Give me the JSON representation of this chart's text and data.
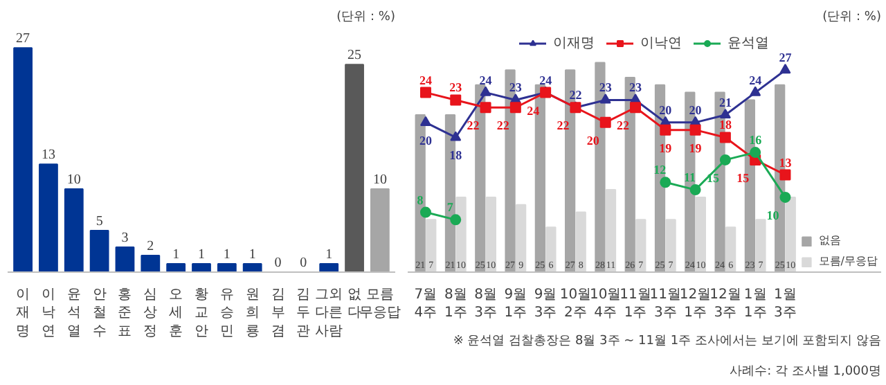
{
  "chart_data": [
    {
      "type": "bar",
      "annotations": [
        "(단위 : %)"
      ],
      "categories": [
        "이재명",
        "이낙연",
        "윤석열",
        "안철수",
        "홍준표",
        "심상정",
        "오세훈",
        "황교안",
        "유승민",
        "원희룡",
        "김부겸",
        "김두관",
        "그외 다른 사람",
        "없다",
        "모름 무응답"
      ],
      "values": [
        27,
        13,
        10,
        5,
        3,
        2,
        1,
        1,
        1,
        1,
        0,
        0,
        1,
        25,
        10
      ],
      "colors": [
        "#003594",
        "#003594",
        "#003594",
        "#003594",
        "#003594",
        "#003594",
        "#003594",
        "#003594",
        "#003594",
        "#003594",
        "#003594",
        "#003594",
        "#003594",
        "#595959",
        "#a6a6a6"
      ],
      "data_labels": true,
      "tick_labels": "x"
    },
    {
      "type": "bar",
      "annotations": [
        "(단위 : %)",
        "※ 윤석열 검찰총장은 8월 3주 ~ 11월 1주 조사에서는 보기에 포함되지 않음",
        "사례수: 각 조사별 1,000명"
      ],
      "categories": [
        "7월\n4주",
        "8월\n1주",
        "8월\n3주",
        "9월\n1주",
        "9월\n3주",
        "10월\n2주",
        "10월\n4주",
        "11월\n1주",
        "11월\n3주",
        "12월\n1주",
        "12월\n3주",
        "1월\n1주",
        "1월\n3주"
      ],
      "series": [
        {
          "name": "없음",
          "type": "bar",
          "color": "#a6a6a6",
          "values": [
            21,
            21,
            25,
            27,
            25,
            27,
            28,
            26,
            25,
            24,
            24,
            23,
            25
          ]
        },
        {
          "name": "모름/무응답",
          "type": "bar",
          "color": "#d9d9d9",
          "values": [
            7,
            10,
            10,
            9,
            6,
            8,
            11,
            7,
            7,
            10,
            6,
            7,
            10
          ]
        },
        {
          "name": "이재명",
          "type": "line",
          "marker": "triangle",
          "color": "#2e3192",
          "values": [
            20,
            18,
            24,
            23,
            24,
            22,
            23,
            23,
            20,
            20,
            21,
            24,
            27
          ]
        },
        {
          "name": "이낙연",
          "type": "line",
          "marker": "square",
          "color": "#e8141b",
          "values": [
            24,
            23,
            22,
            22,
            24,
            22,
            20,
            22,
            19,
            19,
            18,
            15,
            13
          ]
        },
        {
          "name": "윤석열",
          "type": "line",
          "marker": "circle",
          "color": "#1aaa55",
          "values": [
            8,
            7,
            null,
            null,
            null,
            null,
            null,
            null,
            12,
            11,
            15,
            16,
            10
          ]
        }
      ],
      "data_labels": true,
      "tick_labels": "x",
      "legend": "top"
    }
  ]
}
